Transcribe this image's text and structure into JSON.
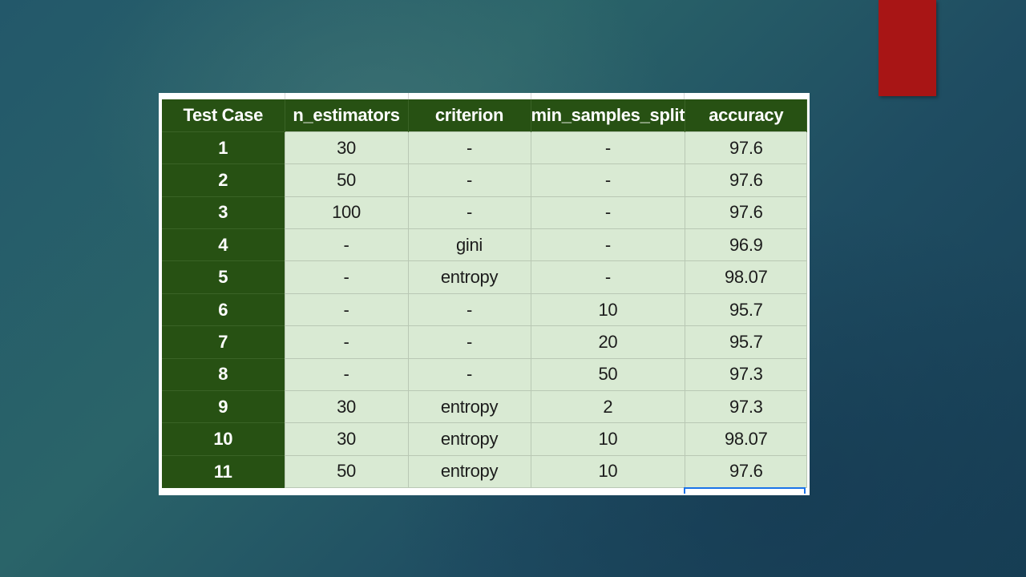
{
  "table": {
    "headers": [
      "Test Case",
      "n_estimators",
      "criterion",
      "min_samples_split",
      "accuracy"
    ],
    "rows": [
      [
        "1",
        "30",
        "-",
        "-",
        "97.6"
      ],
      [
        "2",
        "50",
        "-",
        "-",
        "97.6"
      ],
      [
        "3",
        "100",
        "-",
        "-",
        "97.6"
      ],
      [
        "4",
        "-",
        "gini",
        "-",
        "96.9"
      ],
      [
        "5",
        "-",
        "entropy",
        "-",
        "98.07"
      ],
      [
        "6",
        "-",
        "-",
        "10",
        "95.7"
      ],
      [
        "7",
        "-",
        "-",
        "20",
        "95.7"
      ],
      [
        "8",
        "-",
        "-",
        "50",
        "97.3"
      ],
      [
        "9",
        "30",
        "entropy",
        "2",
        "97.3"
      ],
      [
        "10",
        "30",
        "entropy",
        "10",
        "98.07"
      ],
      [
        "11",
        "50",
        "entropy",
        "10",
        "97.6"
      ]
    ]
  },
  "colors": {
    "header_fill": "#275113",
    "cell_fill": "#d9ead3",
    "accent_bar": "#a81515",
    "selection": "#1a73e8"
  }
}
